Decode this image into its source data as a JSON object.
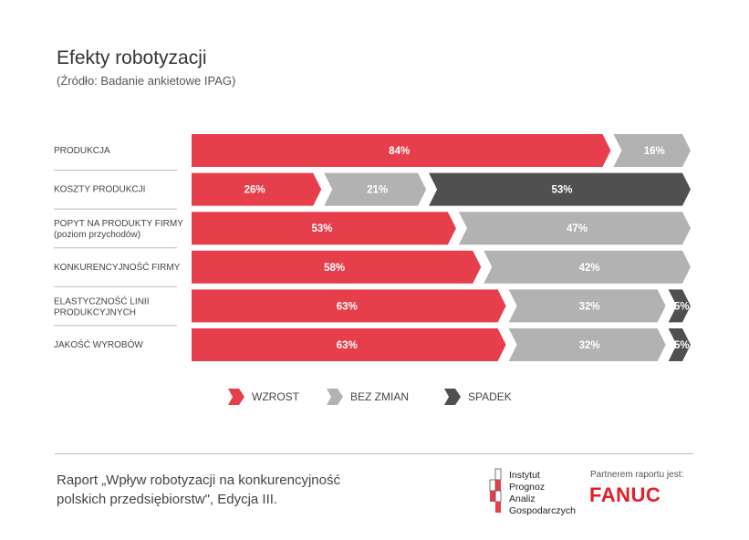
{
  "header": {
    "title": "Efekty robotyzacji",
    "subtitle": "(Źródło: Badanie ankietowe IPAG)"
  },
  "colors": {
    "wzrost": "#e63f4b",
    "bez_zmian": "#b2b2b2",
    "spadek": "#505050"
  },
  "chart_data": {
    "type": "bar",
    "stacked": true,
    "orientation": "horizontal",
    "title": "Efekty robotyzacji",
    "categories": [
      {
        "label": "PRODUKCJA",
        "sublabel": ""
      },
      {
        "label": "KOSZTY PRODUKCJI",
        "sublabel": ""
      },
      {
        "label": "POPYT NA PRODUKTY FIRMY",
        "sublabel": "(poziom przychodów)"
      },
      {
        "label": "KONKURENCYJNOŚĆ FIRMY",
        "sublabel": ""
      },
      {
        "label": "ELASTYCZNOŚĆ LINII",
        "sublabel": "PRODUKCYJNYCH"
      },
      {
        "label": "JAKOŚĆ WYROBÓW",
        "sublabel": ""
      }
    ],
    "series": [
      {
        "name": "WZROST",
        "key": "wzrost",
        "values": [
          84,
          26,
          53,
          58,
          63,
          63
        ]
      },
      {
        "name": "BEZ ZMIAN",
        "key": "bez_zmian",
        "values": [
          16,
          21,
          47,
          42,
          32,
          32
        ]
      },
      {
        "name": "SPADEK",
        "key": "spadek",
        "values": [
          0,
          53,
          0,
          0,
          5,
          5
        ]
      }
    ],
    "value_suffix": "%",
    "legend": "bottom"
  },
  "footer": {
    "report_line1": "Raport „Wpływ robotyzacji na konkurencyjność",
    "report_line2": "polskich przedsiębiorstw\", Edycja III.",
    "ipag_lines": [
      "Instytut",
      "Prognoz",
      "Analiz",
      "Gospodarczych"
    ],
    "partner_label": "Partnerem raportu jest:",
    "partner_logo": "FANUC"
  }
}
